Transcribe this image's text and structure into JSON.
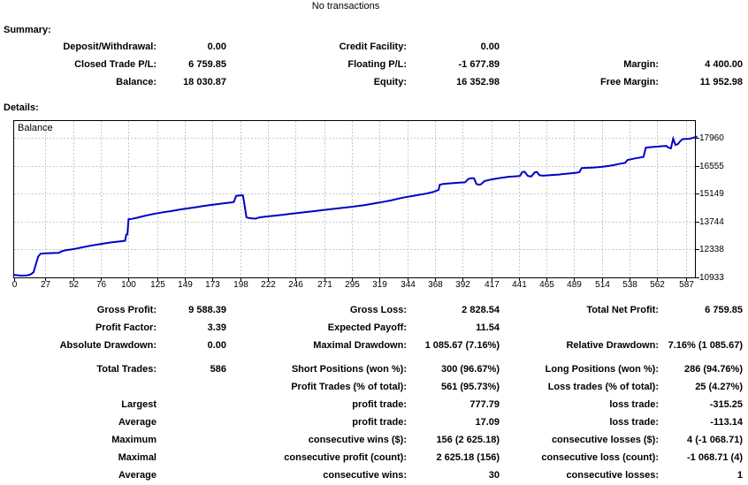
{
  "header": {
    "no_transactions": "No transactions"
  },
  "summary": {
    "title": "Summary:",
    "rows": [
      [
        "Deposit/Withdrawal:",
        "0.00",
        "Credit Facility:",
        "0.00",
        "",
        ""
      ],
      [
        "Closed Trade P/L:",
        "6 759.85",
        "Floating P/L:",
        "-1 677.89",
        "Margin:",
        "4 400.00"
      ],
      [
        "Balance:",
        "18 030.87",
        "Equity:",
        "16 352.98",
        "Free Margin:",
        "11 952.98"
      ]
    ]
  },
  "details": {
    "title": "Details:",
    "rows": [
      [
        "Gross Profit:",
        "9 588.39",
        "Gross Loss:",
        "2 828.54",
        "Total Net Profit:",
        "6 759.85"
      ],
      [
        "Profit Factor:",
        "3.39",
        "Expected Payoff:",
        "11.54",
        "",
        ""
      ],
      [
        "Absolute Drawdown:",
        "0.00",
        "Maximal Drawdown:",
        "1 085.67 (7.16%)",
        "Relative Drawdown:",
        "7.16% (1 085.67)"
      ],
      [
        "Total Trades:",
        "586",
        "Short Positions (won %):",
        "300 (96.67%)",
        "Long Positions (won %):",
        "286 (94.76%)"
      ],
      [
        "",
        "",
        "Profit Trades (% of total):",
        "561 (95.73%)",
        "Loss trades (% of total):",
        "25 (4.27%)"
      ],
      [
        "Largest",
        "",
        "profit trade:",
        "777.79",
        "loss trade:",
        "-315.25"
      ],
      [
        "Average",
        "",
        "profit trade:",
        "17.09",
        "loss trade:",
        "-113.14"
      ],
      [
        "Maximum",
        "",
        "consecutive wins ($):",
        "156 (2 625.18)",
        "consecutive losses ($):",
        "4 (-1 068.71)"
      ],
      [
        "Maximal",
        "",
        "consecutive profit (count):",
        "2 625.18 (156)",
        "consecutive loss (count):",
        "-1 068.71 (4)"
      ],
      [
        "Average",
        "",
        "consecutive wins:",
        "30",
        "consecutive losses:",
        "1"
      ]
    ]
  },
  "chart_data": {
    "type": "line",
    "legend": "Balance",
    "x_ticks": [
      0,
      27,
      52,
      76,
      100,
      125,
      149,
      173,
      198,
      222,
      246,
      271,
      295,
      319,
      344,
      368,
      392,
      417,
      441,
      465,
      489,
      514,
      538,
      562,
      587
    ],
    "y_ticks": [
      17960,
      16555,
      15149,
      13744,
      12338,
      10933
    ],
    "xlim": [
      0,
      595
    ],
    "ylim": [
      10933,
      18805
    ],
    "grid": "dashed",
    "colors": {
      "line": "#0000C8",
      "grid": "#C8C8C8",
      "border": "#000000",
      "background": "#FFFFFF"
    },
    "series": [
      {
        "name": "Balance",
        "points": [
          [
            0,
            11060
          ],
          [
            4,
            11030
          ],
          [
            8,
            11020
          ],
          [
            12,
            11040
          ],
          [
            15,
            11100
          ],
          [
            17,
            11200
          ],
          [
            19,
            11600
          ],
          [
            21,
            11980
          ],
          [
            23,
            12120
          ],
          [
            26,
            12140
          ],
          [
            30,
            12150
          ],
          [
            35,
            12160
          ],
          [
            39,
            12170
          ],
          [
            42,
            12260
          ],
          [
            46,
            12310
          ],
          [
            50,
            12340
          ],
          [
            55,
            12390
          ],
          [
            60,
            12450
          ],
          [
            66,
            12520
          ],
          [
            72,
            12580
          ],
          [
            78,
            12630
          ],
          [
            84,
            12690
          ],
          [
            90,
            12730
          ],
          [
            95,
            12760
          ],
          [
            97,
            12780
          ],
          [
            98,
            13080
          ],
          [
            99,
            13100
          ],
          [
            100,
            13860
          ],
          [
            103,
            13880
          ],
          [
            107,
            13930
          ],
          [
            112,
            14000
          ],
          [
            118,
            14080
          ],
          [
            124,
            14150
          ],
          [
            130,
            14210
          ],
          [
            137,
            14270
          ],
          [
            144,
            14340
          ],
          [
            151,
            14400
          ],
          [
            158,
            14460
          ],
          [
            165,
            14520
          ],
          [
            172,
            14580
          ],
          [
            179,
            14630
          ],
          [
            186,
            14680
          ],
          [
            190,
            14710
          ],
          [
            192,
            14730
          ],
          [
            194,
            15040
          ],
          [
            197,
            15060
          ],
          [
            199,
            15070
          ],
          [
            200,
            15060
          ],
          [
            202,
            14350
          ],
          [
            203,
            13960
          ],
          [
            205,
            13920
          ],
          [
            208,
            13900
          ],
          [
            211,
            13890
          ],
          [
            214,
            13950
          ],
          [
            218,
            13980
          ],
          [
            223,
            14010
          ],
          [
            228,
            14040
          ],
          [
            234,
            14080
          ],
          [
            240,
            14120
          ],
          [
            246,
            14160
          ],
          [
            252,
            14200
          ],
          [
            258,
            14240
          ],
          [
            264,
            14280
          ],
          [
            270,
            14320
          ],
          [
            276,
            14360
          ],
          [
            282,
            14400
          ],
          [
            288,
            14440
          ],
          [
            294,
            14480
          ],
          [
            300,
            14520
          ],
          [
            306,
            14570
          ],
          [
            312,
            14630
          ],
          [
            318,
            14690
          ],
          [
            324,
            14750
          ],
          [
            330,
            14820
          ],
          [
            336,
            14900
          ],
          [
            342,
            14970
          ],
          [
            348,
            15030
          ],
          [
            354,
            15090
          ],
          [
            360,
            15150
          ],
          [
            366,
            15230
          ],
          [
            369,
            15290
          ],
          [
            371,
            15340
          ],
          [
            372,
            15600
          ],
          [
            375,
            15640
          ],
          [
            379,
            15660
          ],
          [
            384,
            15680
          ],
          [
            389,
            15700
          ],
          [
            394,
            15720
          ],
          [
            397,
            15890
          ],
          [
            400,
            15930
          ],
          [
            402,
            15920
          ],
          [
            404,
            15640
          ],
          [
            406,
            15600
          ],
          [
            408,
            15620
          ],
          [
            411,
            15780
          ],
          [
            415,
            15840
          ],
          [
            420,
            15890
          ],
          [
            426,
            15950
          ],
          [
            432,
            16000
          ],
          [
            438,
            16020
          ],
          [
            442,
            16040
          ],
          [
            444,
            16230
          ],
          [
            446,
            16250
          ],
          [
            449,
            16040
          ],
          [
            452,
            16010
          ],
          [
            455,
            16220
          ],
          [
            457,
            16240
          ],
          [
            459,
            16080
          ],
          [
            462,
            16050
          ],
          [
            466,
            16070
          ],
          [
            471,
            16090
          ],
          [
            476,
            16110
          ],
          [
            481,
            16140
          ],
          [
            486,
            16170
          ],
          [
            491,
            16200
          ],
          [
            494,
            16230
          ],
          [
            496,
            16440
          ],
          [
            500,
            16450
          ],
          [
            505,
            16460
          ],
          [
            510,
            16480
          ],
          [
            515,
            16510
          ],
          [
            520,
            16550
          ],
          [
            525,
            16600
          ],
          [
            530,
            16660
          ],
          [
            534,
            16700
          ],
          [
            536,
            16840
          ],
          [
            539,
            16880
          ],
          [
            543,
            16930
          ],
          [
            547,
            16970
          ],
          [
            550,
            17000
          ],
          [
            552,
            17460
          ],
          [
            555,
            17480
          ],
          [
            559,
            17500
          ],
          [
            563,
            17520
          ],
          [
            567,
            17540
          ],
          [
            570,
            17550
          ],
          [
            572,
            17460
          ],
          [
            574,
            17430
          ],
          [
            576,
            17920
          ],
          [
            578,
            17600
          ],
          [
            580,
            17640
          ],
          [
            582,
            17780
          ],
          [
            584,
            17890
          ],
          [
            587,
            17900
          ],
          [
            590,
            17910
          ],
          [
            593,
            17950
          ],
          [
            597,
            18030
          ]
        ]
      }
    ]
  }
}
